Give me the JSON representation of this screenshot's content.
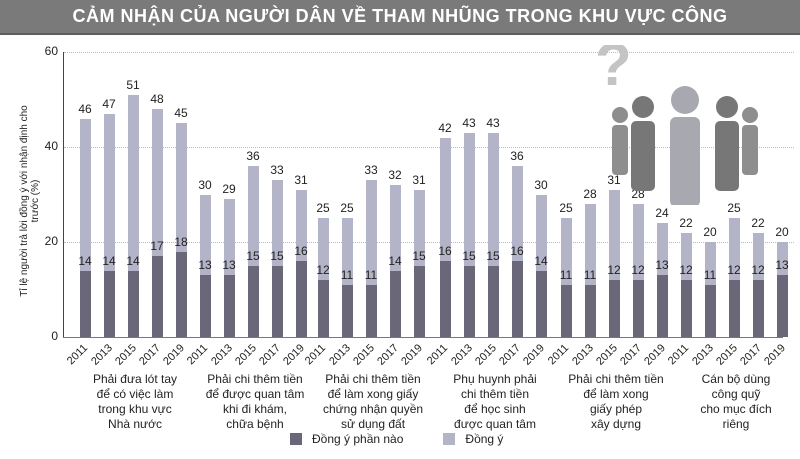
{
  "title": "CẢM NHẬN CỦA NGƯỜI DÂN VỀ THAM NHŨNG TRONG KHU VỰC CÔNG",
  "colors": {
    "partial": "#6a6878",
    "agree": "#b4b4c8",
    "title_bg": "#7a7a7a"
  },
  "legend": [
    {
      "label": "Đồng ý phần nào"
    },
    {
      "label": "Đồng ý"
    }
  ],
  "chart_data": {
    "type": "bar",
    "title": "CẢM NHẬN CỦA NGƯỜI DÂN VỀ THAM NHŨNG TRONG KHU VỰC CÔNG",
    "ylabel": "Tỉ lệ người trả lời đồng ý với nhận định cho trước (%)",
    "xlabel": "",
    "ylim": [
      0,
      60
    ],
    "yticks": [
      0,
      20,
      40,
      60
    ],
    "grid": true,
    "legend_position": "bottom",
    "years": [
      "2011",
      "2013",
      "2015",
      "2017",
      "2019"
    ],
    "groups": [
      {
        "category": "Phải đưa lót tay\nđể có việc làm\ntrong khu vực\nNhà nước",
        "total": [
          46,
          47,
          51,
          48,
          45
        ],
        "partial": [
          14,
          14,
          14,
          17,
          18
        ]
      },
      {
        "category": "Phải chi thêm tiền\nđể được quan tâm\nkhi đi khám,\nchữa bệnh",
        "total": [
          30,
          29,
          36,
          33,
          31
        ],
        "partial": [
          13,
          13,
          15,
          15,
          16
        ]
      },
      {
        "category": "Phải chi thêm tiền\nđể làm xong giấy\nchứng nhận quyền\nsử dụng đất",
        "total": [
          25,
          25,
          33,
          32,
          31
        ],
        "partial": [
          12,
          11,
          11,
          14,
          15
        ]
      },
      {
        "category": "Phụ huynh phải\nchi thêm tiền\nđể học sinh\nđược quan tâm",
        "total": [
          42,
          43,
          43,
          36,
          30
        ],
        "partial": [
          16,
          15,
          15,
          16,
          14
        ]
      },
      {
        "category": "Phải chi thêm tiền\nđể làm xong\ngiấy phép\nxây dựng",
        "total": [
          25,
          28,
          31,
          28,
          24
        ],
        "partial": [
          11,
          11,
          12,
          12,
          13
        ]
      },
      {
        "category": "Cán bộ dùng\ncông quỹ\ncho mục đích\nriêng",
        "total": [
          22,
          20,
          25,
          22,
          20
        ],
        "partial": [
          12,
          11,
          12,
          12,
          13
        ]
      }
    ],
    "series": [
      {
        "name": "Đồng ý phần nào"
      },
      {
        "name": "Đồng ý"
      }
    ]
  }
}
